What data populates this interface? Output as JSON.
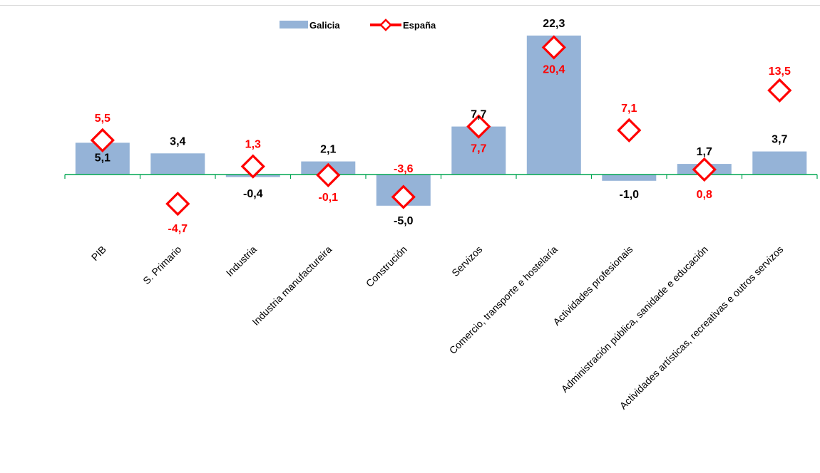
{
  "chart_data": {
    "type": "bar",
    "title": "",
    "xlabel": "",
    "ylabel": "",
    "ylim": [
      -8,
      25
    ],
    "grid": false,
    "legend_position": "top-center",
    "categories": [
      "PIB",
      "S. Primario",
      "Industria",
      "Industria manufactureira",
      "Construción",
      "Servizos",
      "Comercio, transporte e hostelaría",
      "Actividades profesionais",
      "Administración pública, sanidade e educación",
      "Actividades artísticas, recreativas e outros servizos"
    ],
    "series": [
      {
        "name": "Galicia",
        "kind": "bar",
        "color": "#95b3d7",
        "values": [
          5.1,
          3.4,
          -0.4,
          2.1,
          -5.0,
          7.7,
          22.3,
          -1.0,
          1.7,
          3.7
        ],
        "labels": [
          "5,1",
          "3,4",
          "-0,4",
          "2,1",
          "-5,0",
          "7,7",
          "22,3",
          "-1,0",
          "1,7",
          "3,7"
        ]
      },
      {
        "name": "España",
        "kind": "marker",
        "color": "#ff0000",
        "values": [
          5.5,
          -4.7,
          1.3,
          -0.1,
          -3.6,
          7.7,
          20.4,
          7.1,
          0.8,
          13.5
        ],
        "labels": [
          "5,5",
          "-4,7",
          "1,3",
          "-0,1",
          "-3,6",
          "7,7",
          "20,4",
          "7,1",
          "0,8",
          "13,5"
        ]
      }
    ]
  }
}
